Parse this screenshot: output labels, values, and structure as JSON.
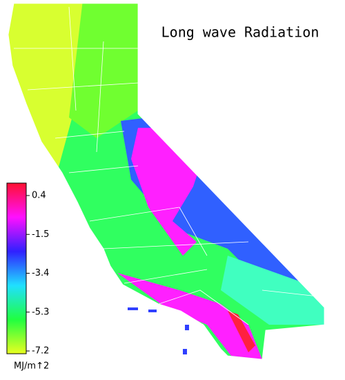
{
  "map": {
    "title": "Long wave Radiation",
    "colorbar": {
      "range": [
        -7.2,
        0.4
      ],
      "ticks": [
        0.4,
        -1.5,
        -3.4,
        -5.3,
        -7.2
      ],
      "unit": "MJ/m↑2",
      "colors": [
        "#ff1030",
        "#ff10ff",
        "#3020ff",
        "#20e0ff",
        "#20ff40",
        "#e8ff20"
      ]
    }
  }
}
